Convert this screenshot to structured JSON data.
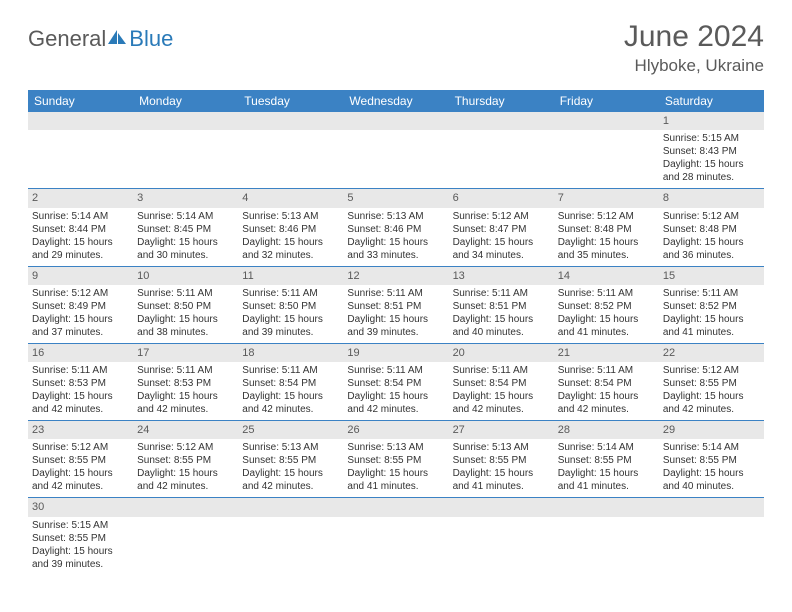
{
  "logo": {
    "general": "General",
    "blue": "Blue"
  },
  "title": "June 2024",
  "location": "Hlyboke, Ukraine",
  "colors": {
    "header_bg": "#3b82c4",
    "header_text": "#ffffff",
    "grid_border": "#3b82c4",
    "daynum_bg": "#e8e8e8",
    "text": "#333333",
    "title_color": "#5a5a5a",
    "logo_gray": "#5a5a5a",
    "logo_blue": "#2a7ab8"
  },
  "day_labels": [
    "Sunday",
    "Monday",
    "Tuesday",
    "Wednesday",
    "Thursday",
    "Friday",
    "Saturday"
  ],
  "weeks": [
    [
      null,
      null,
      null,
      null,
      null,
      null,
      {
        "n": "1",
        "sr": "Sunrise: 5:15 AM",
        "ss": "Sunset: 8:43 PM",
        "d1": "Daylight: 15 hours",
        "d2": "and 28 minutes."
      }
    ],
    [
      {
        "n": "2",
        "sr": "Sunrise: 5:14 AM",
        "ss": "Sunset: 8:44 PM",
        "d1": "Daylight: 15 hours",
        "d2": "and 29 minutes."
      },
      {
        "n": "3",
        "sr": "Sunrise: 5:14 AM",
        "ss": "Sunset: 8:45 PM",
        "d1": "Daylight: 15 hours",
        "d2": "and 30 minutes."
      },
      {
        "n": "4",
        "sr": "Sunrise: 5:13 AM",
        "ss": "Sunset: 8:46 PM",
        "d1": "Daylight: 15 hours",
        "d2": "and 32 minutes."
      },
      {
        "n": "5",
        "sr": "Sunrise: 5:13 AM",
        "ss": "Sunset: 8:46 PM",
        "d1": "Daylight: 15 hours",
        "d2": "and 33 minutes."
      },
      {
        "n": "6",
        "sr": "Sunrise: 5:12 AM",
        "ss": "Sunset: 8:47 PM",
        "d1": "Daylight: 15 hours",
        "d2": "and 34 minutes."
      },
      {
        "n": "7",
        "sr": "Sunrise: 5:12 AM",
        "ss": "Sunset: 8:48 PM",
        "d1": "Daylight: 15 hours",
        "d2": "and 35 minutes."
      },
      {
        "n": "8",
        "sr": "Sunrise: 5:12 AM",
        "ss": "Sunset: 8:48 PM",
        "d1": "Daylight: 15 hours",
        "d2": "and 36 minutes."
      }
    ],
    [
      {
        "n": "9",
        "sr": "Sunrise: 5:12 AM",
        "ss": "Sunset: 8:49 PM",
        "d1": "Daylight: 15 hours",
        "d2": "and 37 minutes."
      },
      {
        "n": "10",
        "sr": "Sunrise: 5:11 AM",
        "ss": "Sunset: 8:50 PM",
        "d1": "Daylight: 15 hours",
        "d2": "and 38 minutes."
      },
      {
        "n": "11",
        "sr": "Sunrise: 5:11 AM",
        "ss": "Sunset: 8:50 PM",
        "d1": "Daylight: 15 hours",
        "d2": "and 39 minutes."
      },
      {
        "n": "12",
        "sr": "Sunrise: 5:11 AM",
        "ss": "Sunset: 8:51 PM",
        "d1": "Daylight: 15 hours",
        "d2": "and 39 minutes."
      },
      {
        "n": "13",
        "sr": "Sunrise: 5:11 AM",
        "ss": "Sunset: 8:51 PM",
        "d1": "Daylight: 15 hours",
        "d2": "and 40 minutes."
      },
      {
        "n": "14",
        "sr": "Sunrise: 5:11 AM",
        "ss": "Sunset: 8:52 PM",
        "d1": "Daylight: 15 hours",
        "d2": "and 41 minutes."
      },
      {
        "n": "15",
        "sr": "Sunrise: 5:11 AM",
        "ss": "Sunset: 8:52 PM",
        "d1": "Daylight: 15 hours",
        "d2": "and 41 minutes."
      }
    ],
    [
      {
        "n": "16",
        "sr": "Sunrise: 5:11 AM",
        "ss": "Sunset: 8:53 PM",
        "d1": "Daylight: 15 hours",
        "d2": "and 42 minutes."
      },
      {
        "n": "17",
        "sr": "Sunrise: 5:11 AM",
        "ss": "Sunset: 8:53 PM",
        "d1": "Daylight: 15 hours",
        "d2": "and 42 minutes."
      },
      {
        "n": "18",
        "sr": "Sunrise: 5:11 AM",
        "ss": "Sunset: 8:54 PM",
        "d1": "Daylight: 15 hours",
        "d2": "and 42 minutes."
      },
      {
        "n": "19",
        "sr": "Sunrise: 5:11 AM",
        "ss": "Sunset: 8:54 PM",
        "d1": "Daylight: 15 hours",
        "d2": "and 42 minutes."
      },
      {
        "n": "20",
        "sr": "Sunrise: 5:11 AM",
        "ss": "Sunset: 8:54 PM",
        "d1": "Daylight: 15 hours",
        "d2": "and 42 minutes."
      },
      {
        "n": "21",
        "sr": "Sunrise: 5:11 AM",
        "ss": "Sunset: 8:54 PM",
        "d1": "Daylight: 15 hours",
        "d2": "and 42 minutes."
      },
      {
        "n": "22",
        "sr": "Sunrise: 5:12 AM",
        "ss": "Sunset: 8:55 PM",
        "d1": "Daylight: 15 hours",
        "d2": "and 42 minutes."
      }
    ],
    [
      {
        "n": "23",
        "sr": "Sunrise: 5:12 AM",
        "ss": "Sunset: 8:55 PM",
        "d1": "Daylight: 15 hours",
        "d2": "and 42 minutes."
      },
      {
        "n": "24",
        "sr": "Sunrise: 5:12 AM",
        "ss": "Sunset: 8:55 PM",
        "d1": "Daylight: 15 hours",
        "d2": "and 42 minutes."
      },
      {
        "n": "25",
        "sr": "Sunrise: 5:13 AM",
        "ss": "Sunset: 8:55 PM",
        "d1": "Daylight: 15 hours",
        "d2": "and 42 minutes."
      },
      {
        "n": "26",
        "sr": "Sunrise: 5:13 AM",
        "ss": "Sunset: 8:55 PM",
        "d1": "Daylight: 15 hours",
        "d2": "and 41 minutes."
      },
      {
        "n": "27",
        "sr": "Sunrise: 5:13 AM",
        "ss": "Sunset: 8:55 PM",
        "d1": "Daylight: 15 hours",
        "d2": "and 41 minutes."
      },
      {
        "n": "28",
        "sr": "Sunrise: 5:14 AM",
        "ss": "Sunset: 8:55 PM",
        "d1": "Daylight: 15 hours",
        "d2": "and 41 minutes."
      },
      {
        "n": "29",
        "sr": "Sunrise: 5:14 AM",
        "ss": "Sunset: 8:55 PM",
        "d1": "Daylight: 15 hours",
        "d2": "and 40 minutes."
      }
    ],
    [
      {
        "n": "30",
        "sr": "Sunrise: 5:15 AM",
        "ss": "Sunset: 8:55 PM",
        "d1": "Daylight: 15 hours",
        "d2": "and 39 minutes."
      },
      null,
      null,
      null,
      null,
      null,
      null
    ]
  ]
}
